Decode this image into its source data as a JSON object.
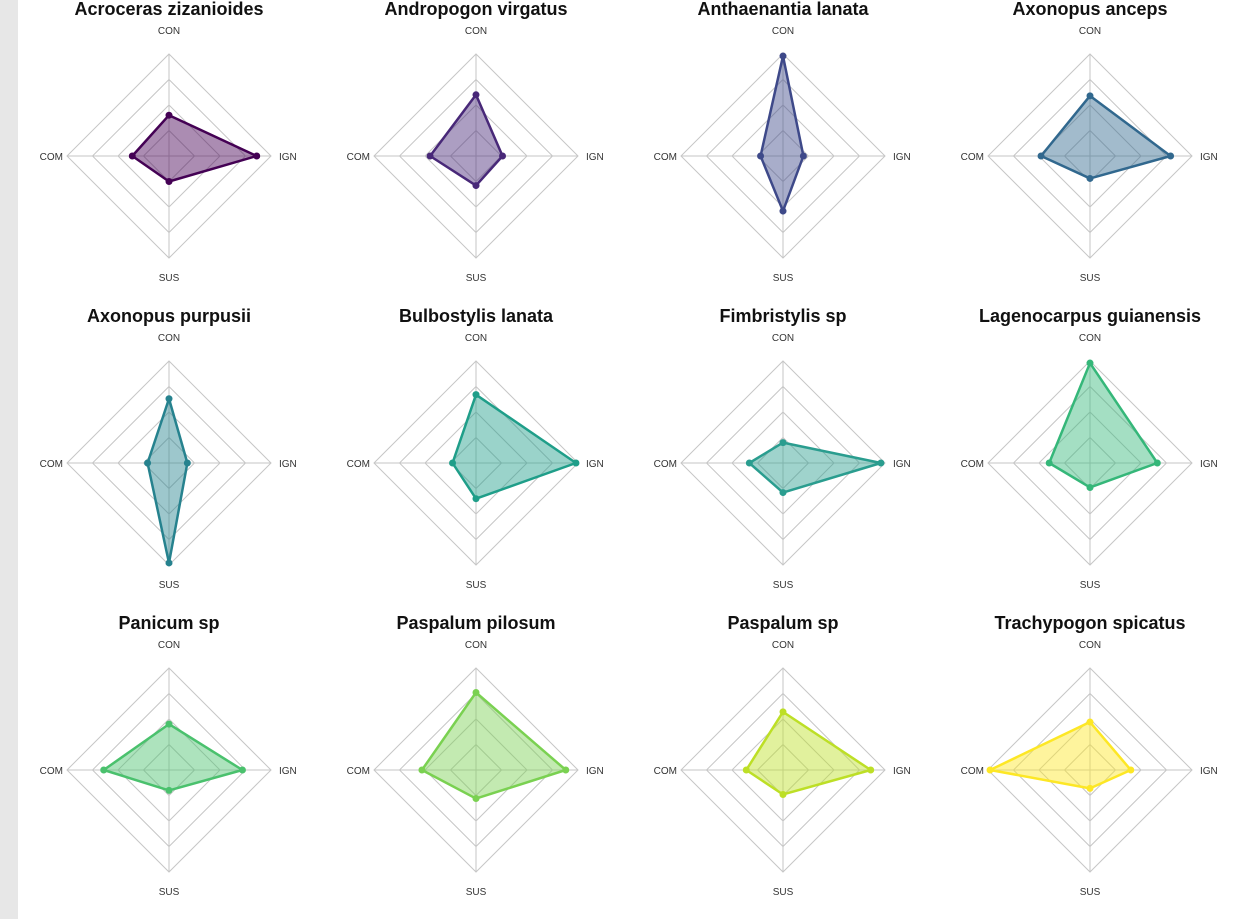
{
  "chart_data": {
    "type": "radar",
    "axes": [
      "CON",
      "IGN",
      "SUS",
      "COM"
    ],
    "range": [
      0,
      1
    ],
    "grid_levels": 4,
    "legend": "none",
    "panels": [
      {
        "title": "Acroceras zizanioides",
        "values": {
          "CON": 0.4,
          "IGN": 0.86,
          "SUS": 0.25,
          "COM": 0.36
        },
        "color": "#440154"
      },
      {
        "title": "Andropogon virgatus",
        "values": {
          "CON": 0.6,
          "IGN": 0.26,
          "SUS": 0.29,
          "COM": 0.45
        },
        "color": "#482878"
      },
      {
        "title": "Anthaenantia lanata",
        "values": {
          "CON": 0.98,
          "IGN": 0.2,
          "SUS": 0.54,
          "COM": 0.22
        },
        "color": "#3e4989"
      },
      {
        "title": "Axonopus anceps",
        "values": {
          "CON": 0.59,
          "IGN": 0.79,
          "SUS": 0.22,
          "COM": 0.48
        },
        "color": "#31688e"
      },
      {
        "title": "Axonopus purpusii",
        "values": {
          "CON": 0.63,
          "IGN": 0.18,
          "SUS": 0.98,
          "COM": 0.21
        },
        "color": "#26828e"
      },
      {
        "title": "Bulbostylis lanata",
        "values": {
          "CON": 0.67,
          "IGN": 0.98,
          "SUS": 0.35,
          "COM": 0.23
        },
        "color": "#1f9e89"
      },
      {
        "title": "Fimbristylis sp",
        "values": {
          "CON": 0.2,
          "IGN": 0.96,
          "SUS": 0.29,
          "COM": 0.33
        },
        "color": "#2a9d8f"
      },
      {
        "title": "Lagenocarpus guianensis",
        "values": {
          "CON": 0.98,
          "IGN": 0.66,
          "SUS": 0.24,
          "COM": 0.4
        },
        "color": "#35b779"
      },
      {
        "title": "Panicum sp",
        "values": {
          "CON": 0.45,
          "IGN": 0.72,
          "SUS": 0.2,
          "COM": 0.64
        },
        "color": "#4ac16d"
      },
      {
        "title": "Paspalum pilosum",
        "values": {
          "CON": 0.76,
          "IGN": 0.88,
          "SUS": 0.28,
          "COM": 0.53
        },
        "color": "#7ad151"
      },
      {
        "title": "Paspalum sp",
        "values": {
          "CON": 0.57,
          "IGN": 0.86,
          "SUS": 0.24,
          "COM": 0.36
        },
        "color": "#bddf26"
      },
      {
        "title": "Trachypogon spicatus",
        "values": {
          "CON": 0.47,
          "IGN": 0.4,
          "SUS": 0.18,
          "COM": 0.98
        },
        "color": "#fde725"
      }
    ]
  }
}
